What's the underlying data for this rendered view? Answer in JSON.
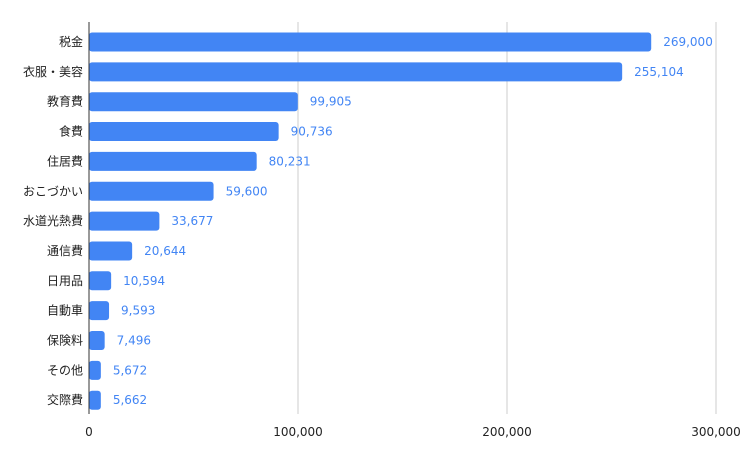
{
  "chart_data": {
    "type": "bar",
    "orientation": "horizontal",
    "categories": [
      "税金",
      "衣服・美容",
      "教育費",
      "食費",
      "住居費",
      "おこづかい",
      "水道光熱費",
      "通信費",
      "日用品",
      "自動車",
      "保険料",
      "その他",
      "交際費"
    ],
    "values": [
      269000,
      255104,
      99905,
      90736,
      80231,
      59600,
      33677,
      20644,
      10594,
      9593,
      7496,
      5672,
      5662
    ],
    "value_labels": [
      "269,000",
      "255,104",
      "99,905",
      "90,736",
      "80,231",
      "59,600",
      "33,677",
      "20,644",
      "10,594",
      "9,593",
      "7,496",
      "5,672",
      "5,662"
    ],
    "xlim": [
      0,
      300000
    ],
    "x_ticks": [
      0,
      100000,
      200000,
      300000
    ],
    "x_tick_labels": [
      "0",
      "100,000",
      "200,000",
      "300,000"
    ],
    "grid": true,
    "legend": "none",
    "title": "",
    "xlabel": "",
    "ylabel": "",
    "colors": {
      "bar": "#4285f4",
      "value_label": "#4285f4",
      "grid": "#cccccc",
      "axis": "#333333",
      "text": "#222222"
    }
  }
}
